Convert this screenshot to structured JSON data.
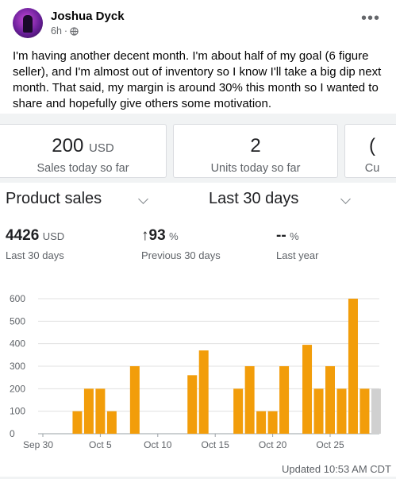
{
  "post": {
    "author": "Joshua Dyck",
    "time": "6h",
    "dot": "·",
    "text": "I'm having another decent month. I'm about half of my goal (6 figure seller), and I'm almost out of inventory so I know I'll take a big dip next month. That said, my margin is around 30% this month so I wanted to share and hopefully give others some motivation."
  },
  "cards": [
    {
      "value": "200",
      "unit": "USD",
      "label": "Sales today so far"
    },
    {
      "value": "2",
      "unit": "",
      "label": "Units today so far"
    },
    {
      "value": "(",
      "unit": "",
      "label": "Cu"
    }
  ],
  "dropdowns": {
    "metric": "Product sales",
    "period": "Last 30 days"
  },
  "summary": [
    {
      "value": "4426",
      "unit": "USD",
      "arrow": "",
      "label": "Last 30 days"
    },
    {
      "value": "93",
      "unit": "%",
      "arrow": "↑",
      "label": "Previous 30 days"
    },
    {
      "value": "--",
      "unit": "%",
      "arrow": "",
      "label": "Last year"
    }
  ],
  "chart_data": {
    "type": "bar",
    "x": [
      "Sep 30",
      "Oct 1",
      "Oct 2",
      "Oct 3",
      "Oct 4",
      "Oct 5",
      "Oct 6",
      "Oct 7",
      "Oct 8",
      "Oct 9",
      "Oct 10",
      "Oct 11",
      "Oct 12",
      "Oct 13",
      "Oct 14",
      "Oct 15",
      "Oct 16",
      "Oct 17",
      "Oct 18",
      "Oct 19",
      "Oct 20",
      "Oct 21",
      "Oct 22",
      "Oct 23",
      "Oct 24",
      "Oct 25",
      "Oct 26",
      "Oct 27",
      "Oct 28",
      "Oct 29"
    ],
    "values": [
      0,
      0,
      0,
      100,
      200,
      200,
      100,
      0,
      300,
      0,
      0,
      0,
      0,
      260,
      370,
      0,
      0,
      200,
      300,
      100,
      100,
      300,
      0,
      395,
      200,
      300,
      200,
      600,
      200,
      null
    ],
    "highlight_color": "#f29d0a",
    "today_color": "#d0d0d0",
    "x_tick_labels": [
      "Sep 30",
      "Oct 5",
      "Oct 10",
      "Oct 15",
      "Oct 20",
      "Oct 25"
    ],
    "y_ticks": [
      0,
      100,
      200,
      300,
      400,
      500,
      600
    ],
    "ylim": [
      0,
      600
    ],
    "grid": true,
    "title": "",
    "xlabel": "",
    "ylabel": ""
  },
  "updated": "Updated 10:53 AM CDT"
}
